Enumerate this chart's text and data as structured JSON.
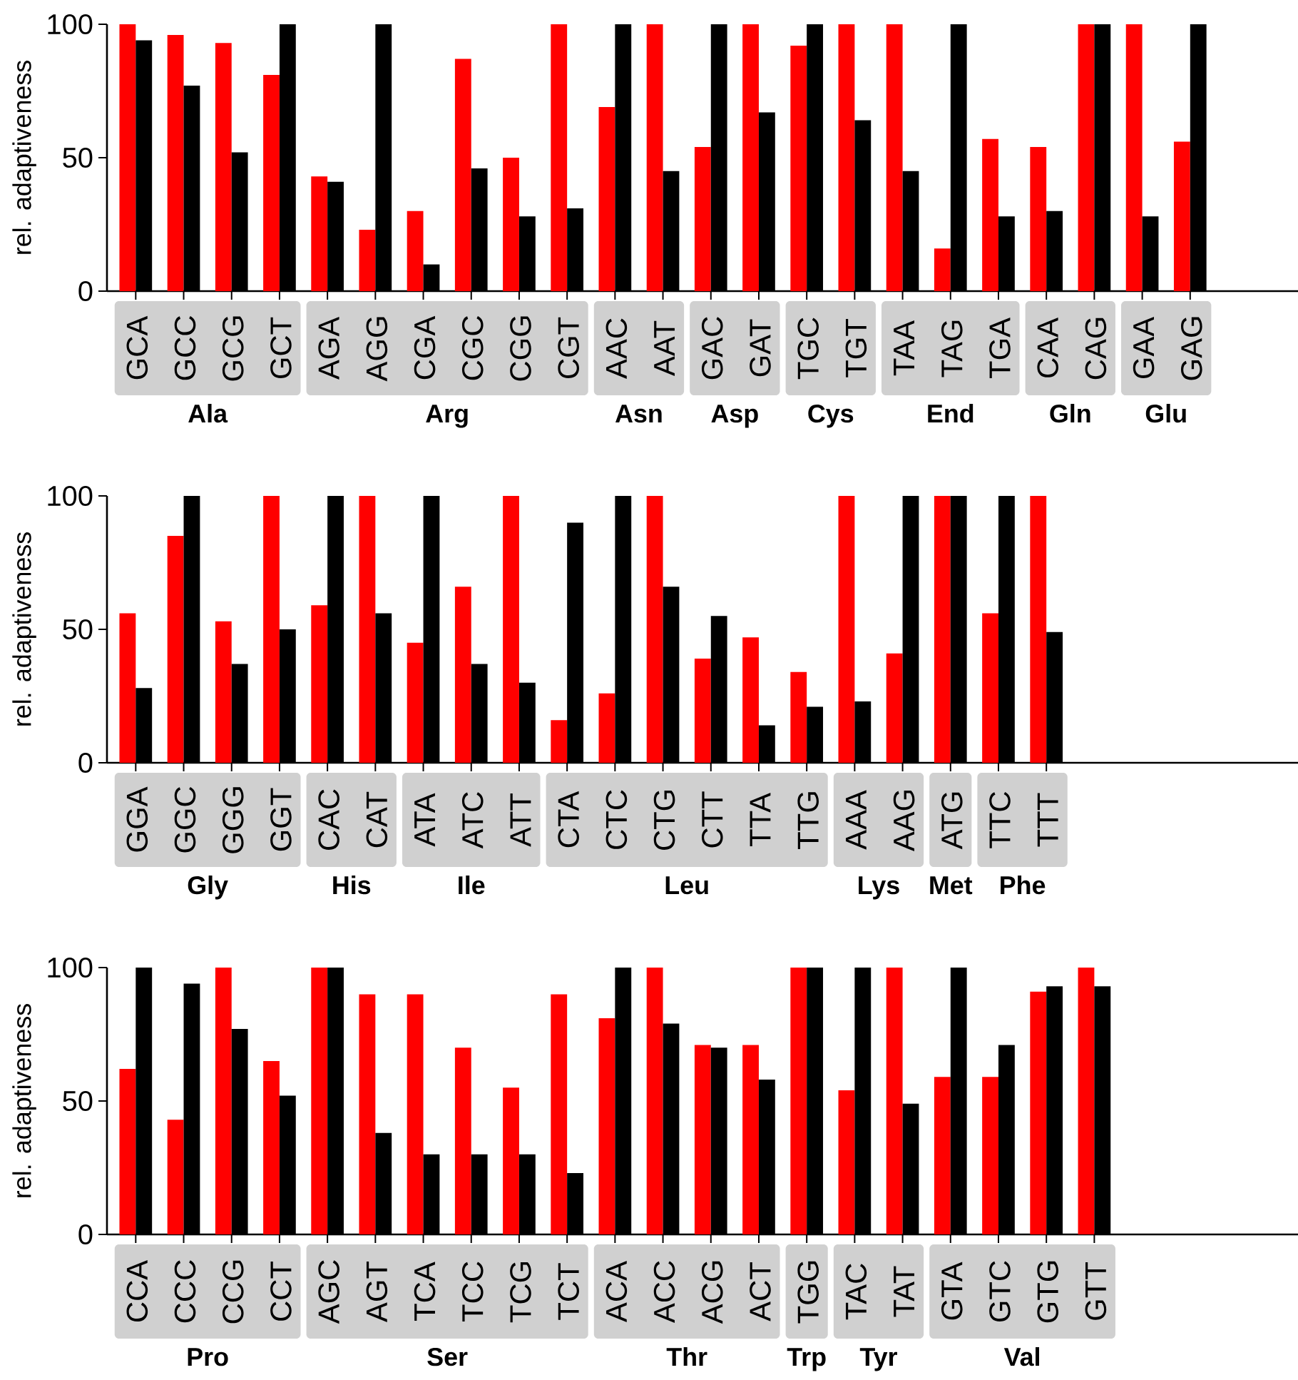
{
  "chart_data": [
    {
      "type": "bar",
      "ylabel": "rel. adaptiveness",
      "ylim": [
        0,
        100
      ],
      "yticks": [
        0,
        50,
        100
      ],
      "categories": [
        "GCA",
        "GCC",
        "GCG",
        "GCT",
        "AGA",
        "AGG",
        "CGA",
        "CGC",
        "CGG",
        "CGT",
        "AAC",
        "AAT",
        "GAC",
        "GAT",
        "TGC",
        "TGT",
        "TAA",
        "TAG",
        "TGA",
        "CAA",
        "CAG",
        "GAA",
        "GAG"
      ],
      "series": [
        {
          "color": "#ff0000",
          "values": [
            100,
            96,
            93,
            81,
            43,
            23,
            30,
            87,
            50,
            100,
            69,
            100,
            54,
            100,
            92,
            100,
            100,
            16,
            57,
            54,
            100,
            100,
            56
          ]
        },
        {
          "color": "#000000",
          "values": [
            94,
            77,
            52,
            100,
            41,
            100,
            10,
            46,
            28,
            31,
            100,
            45,
            100,
            67,
            100,
            64,
            45,
            100,
            28,
            30,
            100,
            28,
            100
          ]
        }
      ],
      "annotations": [
        "Ala",
        "Arg",
        "Asn",
        "Asp",
        "Cys",
        "End",
        "Gln",
        "Glu"
      ]
    },
    {
      "type": "bar",
      "ylabel": "rel. adaptiveness",
      "ylim": [
        0,
        100
      ],
      "yticks": [
        0,
        50,
        100
      ],
      "categories": [
        "GGA",
        "GGC",
        "GGG",
        "GGT",
        "CAC",
        "CAT",
        "ATA",
        "ATC",
        "ATT",
        "CTA",
        "CTC",
        "CTG",
        "CTT",
        "TTA",
        "TTG",
        "AAA",
        "AAG",
        "ATG",
        "TTC",
        "TTT"
      ],
      "series": [
        {
          "color": "#ff0000",
          "values": [
            56,
            85,
            53,
            100,
            59,
            100,
            45,
            66,
            100,
            16,
            26,
            100,
            39,
            47,
            34,
            100,
            41,
            100,
            56,
            100
          ]
        },
        {
          "color": "#000000",
          "values": [
            28,
            100,
            37,
            50,
            100,
            56,
            100,
            37,
            30,
            90,
            100,
            66,
            55,
            14,
            21,
            23,
            100,
            100,
            100,
            49
          ]
        }
      ],
      "annotations": [
        "Gly",
        "His",
        "Ile",
        "Leu",
        "Lys",
        "Met",
        "Phe"
      ]
    },
    {
      "type": "bar",
      "ylabel": "rel. adaptiveness",
      "ylim": [
        0,
        100
      ],
      "yticks": [
        0,
        50,
        100
      ],
      "categories": [
        "CCA",
        "CCC",
        "CCG",
        "CCT",
        "AGC",
        "AGT",
        "TCA",
        "TCC",
        "TCG",
        "TCT",
        "ACA",
        "ACC",
        "ACG",
        "ACT",
        "TGG",
        "TAC",
        "TAT",
        "GTA",
        "GTC",
        "GTG",
        "GTT"
      ],
      "series": [
        {
          "color": "#ff0000",
          "values": [
            62,
            43,
            100,
            65,
            100,
            90,
            90,
            70,
            55,
            90,
            81,
            100,
            71,
            71,
            100,
            54,
            100,
            59,
            59,
            91,
            100
          ]
        },
        {
          "color": "#000000",
          "values": [
            100,
            94,
            77,
            52,
            100,
            38,
            30,
            30,
            30,
            23,
            100,
            79,
            70,
            58,
            100,
            100,
            49,
            100,
            71,
            93,
            93
          ]
        }
      ],
      "annotations": [
        "Pro",
        "Ser",
        "Thr",
        "Trp",
        "Tyr",
        "Val"
      ]
    }
  ]
}
